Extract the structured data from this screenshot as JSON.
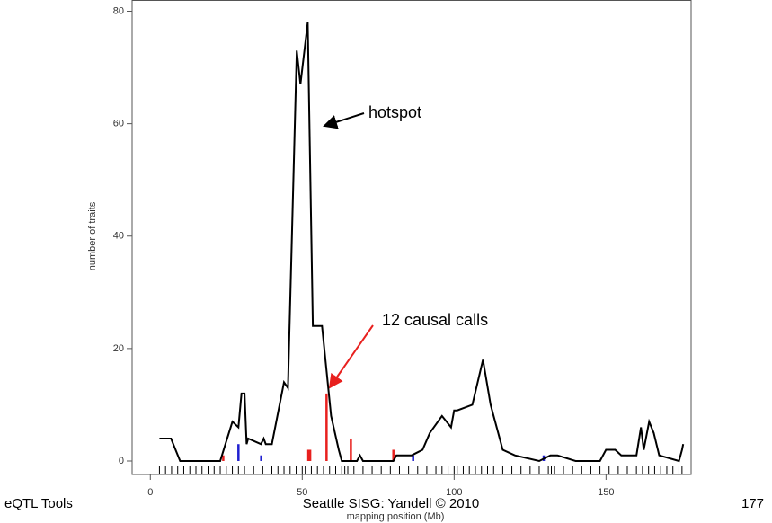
{
  "chart_data": {
    "type": "line",
    "ylabel": "number of traits",
    "xlabel": "mapping position (Mb)",
    "xlim": [
      -6,
      178
    ],
    "ylim": [
      -2.4,
      82
    ],
    "xticks": [
      0,
      50,
      100,
      150
    ],
    "yticks": [
      0,
      20,
      40,
      60,
      80
    ],
    "line": {
      "color": "#000000",
      "x": [
        3,
        6.8,
        9.8,
        23,
        27,
        29,
        30,
        31,
        31.7,
        32.2,
        36.4,
        37.3,
        38,
        40,
        44,
        45.3,
        48.2,
        49.4,
        51.8,
        53.5,
        56.5,
        59.5,
        62,
        63,
        68,
        69,
        70,
        80,
        81,
        86,
        89.6,
        92,
        96,
        99,
        100,
        101,
        106,
        109.5,
        112,
        116,
        120,
        128,
        131.7,
        134,
        140,
        148,
        150,
        153,
        155,
        160,
        161.5,
        162.4,
        164.2,
        165.7,
        167.5,
        174,
        175,
        175.4
      ],
      "values": [
        4,
        4,
        0,
        0,
        7,
        6,
        12,
        12,
        3,
        4,
        3,
        4,
        3,
        3,
        14,
        13,
        73,
        67,
        78,
        24,
        24,
        8,
        2,
        0,
        0,
        1,
        0,
        0,
        1,
        1,
        2,
        5,
        8,
        6,
        9,
        9,
        10,
        18,
        10,
        2,
        1,
        0,
        1,
        1,
        0,
        0,
        2,
        2,
        1,
        1,
        6,
        2,
        7,
        5,
        1,
        0,
        2,
        3
      ]
    },
    "calls": [
      {
        "color": "#e8201e",
        "x": [
          24,
          52,
          52.6,
          58,
          66,
          80
        ],
        "values": [
          1,
          2,
          2,
          12,
          4,
          2
        ]
      },
      {
        "color": "#2020d0",
        "x": [
          29,
          36.5,
          86.5,
          129.5
        ],
        "values": [
          3,
          1,
          1,
          1
        ]
      }
    ],
    "rug": [
      3,
      5,
      7,
      9,
      11,
      13,
      15,
      17,
      19,
      21,
      23,
      25,
      27,
      29,
      31,
      34,
      37,
      40,
      42,
      44,
      46,
      48,
      50,
      51,
      53,
      55,
      57,
      59,
      61,
      63,
      64,
      65,
      67,
      70,
      73,
      76,
      79,
      82,
      85,
      88,
      91,
      94,
      96,
      98,
      100,
      101,
      103,
      105,
      107,
      109,
      111,
      113,
      116,
      119,
      122,
      125,
      128,
      131,
      132,
      133,
      136,
      139,
      142,
      145,
      148,
      151,
      154,
      157,
      160,
      162,
      164,
      166,
      168,
      170,
      172,
      174,
      175
    ],
    "annotations": [
      {
        "text": "hotspot"
      },
      {
        "text": "12 causal calls"
      }
    ]
  },
  "footer": {
    "left": "eQTL Tools",
    "center": "Seattle SISG: Yandell © 2010",
    "right": "177"
  }
}
